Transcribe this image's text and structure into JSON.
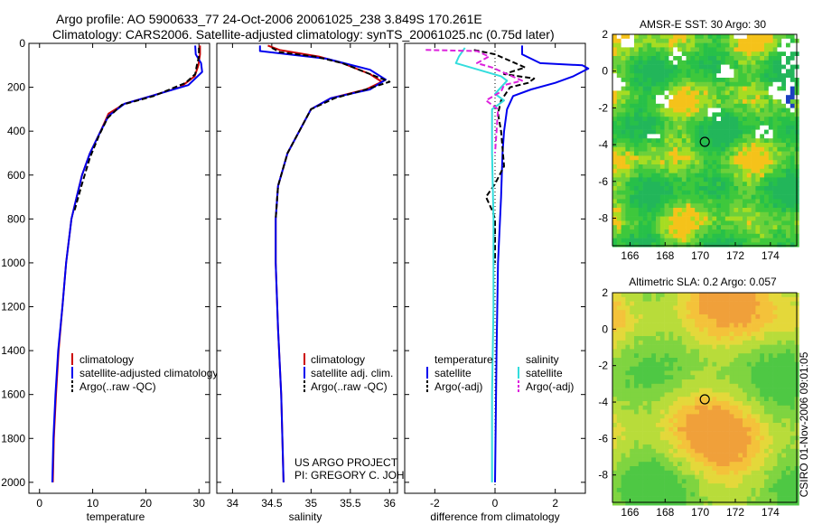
{
  "header": {
    "title_line1": "Argo profile: AO 5900633_77 24-Oct-2006 20061025_238 3.849S 170.261E",
    "title_line2": "Climatology: CARS2006. Satellite-adjusted climatology: synTS_20061025.nc (0.75d later)"
  },
  "credits": {
    "project": "US ARGO PROJECT",
    "pi": "PI: GREGORY C. JOHNSON",
    "stamp": "CSIRO 01-Nov-2006 09:01:05"
  },
  "colors": {
    "climatology": "#cc0000",
    "satellite": "#0000ee",
    "argo": "#000000",
    "satellite_salinity": "#33dddd",
    "argo_salinity": "#dd22dd"
  },
  "chart_data": [
    {
      "id": "temperature",
      "type": "line",
      "xlabel": "temperature",
      "ylabel": "",
      "xlim": [
        -2,
        32
      ],
      "ylim": [
        0,
        2050
      ],
      "y_inverted": true,
      "xticks": [
        0,
        10,
        20,
        30
      ],
      "yticks": [
        0,
        200,
        400,
        600,
        800,
        1000,
        1200,
        1400,
        1600,
        1800,
        2000
      ],
      "legend": {
        "position": "bottom-right",
        "entries": [
          "climatology",
          "satellite-adjusted climatology",
          "Argo(..raw -QC)"
        ]
      },
      "series": [
        {
          "name": "climatology",
          "color": "#cc0000",
          "dash": "",
          "points": [
            [
              30.2,
              10
            ],
            [
              30.2,
              50
            ],
            [
              29.9,
              100
            ],
            [
              29.2,
              150
            ],
            [
              26.5,
              200
            ],
            [
              21,
              240
            ],
            [
              16,
              275
            ],
            [
              13,
              320
            ],
            [
              11.5,
              400
            ],
            [
              9.5,
              500
            ],
            [
              8,
              600
            ],
            [
              7,
              700
            ],
            [
              6,
              800
            ],
            [
              5,
              1000
            ],
            [
              4.3,
              1200
            ],
            [
              3.6,
              1400
            ],
            [
              3.1,
              1600
            ],
            [
              2.7,
              1800
            ],
            [
              2.5,
              2000
            ]
          ]
        },
        {
          "name": "satellite-adjusted climatology",
          "color": "#0000ee",
          "dash": "",
          "points": [
            [
              29.3,
              10
            ],
            [
              29.4,
              50
            ],
            [
              30.4,
              90
            ],
            [
              30.6,
              130
            ],
            [
              28,
              190
            ],
            [
              21,
              240
            ],
            [
              16,
              275
            ],
            [
              13,
              330
            ],
            [
              11.5,
              400
            ],
            [
              9.5,
              500
            ],
            [
              8,
              600
            ],
            [
              7,
              700
            ],
            [
              6,
              800
            ],
            [
              5,
              1000
            ],
            [
              4.3,
              1200
            ],
            [
              3.5,
              1400
            ],
            [
              3,
              1600
            ],
            [
              2.6,
              1800
            ],
            [
              2.4,
              2000
            ]
          ]
        },
        {
          "name": "Argo(..raw -QC)",
          "color": "#000000",
          "dash": "6,3",
          "points": [
            [
              30,
              20
            ],
            [
              30,
              60
            ],
            [
              29.6,
              100
            ],
            [
              29.3,
              140
            ],
            [
              27.5,
              180
            ],
            [
              21.5,
              240
            ],
            [
              15.5,
              280
            ],
            [
              12.8,
              340
            ],
            [
              11.2,
              420
            ],
            [
              9.5,
              520
            ],
            [
              8,
              640
            ],
            [
              6.6,
              760
            ]
          ]
        }
      ]
    },
    {
      "id": "salinity",
      "type": "line",
      "xlabel": "salinity",
      "ylabel": "",
      "xlim": [
        33.8,
        36.1
      ],
      "ylim": [
        0,
        2050
      ],
      "y_inverted": true,
      "xticks": [
        34,
        34.5,
        35,
        35.5,
        36
      ],
      "legend": {
        "position": "bottom-right",
        "entries": [
          "climatology",
          "satellite adj. clim.",
          "Argo(..raw -QC)"
        ]
      },
      "series": [
        {
          "name": "climatology",
          "color": "#cc0000",
          "dash": "",
          "points": [
            [
              34.45,
              10
            ],
            [
              34.6,
              30
            ],
            [
              35.1,
              60
            ],
            [
              35.4,
              90
            ],
            [
              35.75,
              140
            ],
            [
              35.9,
              175
            ],
            [
              35.7,
              210
            ],
            [
              35.25,
              250
            ],
            [
              35.0,
              300
            ],
            [
              34.85,
              400
            ],
            [
              34.7,
              500
            ],
            [
              34.58,
              650
            ],
            [
              34.55,
              800
            ],
            [
              34.55,
              1000
            ],
            [
              34.58,
              1300
            ],
            [
              34.62,
              1600
            ],
            [
              34.65,
              2000
            ]
          ]
        },
        {
          "name": "satellite adj. clim.",
          "color": "#0000ee",
          "dash": "",
          "points": [
            [
              34.35,
              10
            ],
            [
              34.35,
              35
            ],
            [
              35.2,
              70
            ],
            [
              35.75,
              120
            ],
            [
              35.95,
              165
            ],
            [
              35.75,
              210
            ],
            [
              35.25,
              250
            ],
            [
              35.0,
              300
            ],
            [
              34.85,
              400
            ],
            [
              34.7,
              500
            ],
            [
              34.58,
              650
            ],
            [
              34.55,
              800
            ],
            [
              34.55,
              1000
            ],
            [
              34.58,
              1300
            ],
            [
              34.62,
              1600
            ],
            [
              34.65,
              2000
            ]
          ]
        },
        {
          "name": "Argo(..raw -QC)",
          "color": "#000000",
          "dash": "6,3",
          "points": [
            [
              34.5,
              20
            ],
            [
              34.6,
              40
            ],
            [
              35.05,
              60
            ],
            [
              35.4,
              90
            ],
            [
              35.75,
              140
            ],
            [
              36.0,
              175
            ],
            [
              35.7,
              210
            ],
            [
              35.3,
              250
            ],
            [
              35.0,
              300
            ],
            [
              34.85,
              400
            ],
            [
              34.7,
              500
            ],
            [
              34.58,
              650
            ],
            [
              34.55,
              800
            ]
          ]
        }
      ]
    },
    {
      "id": "difference",
      "type": "line",
      "xlabel": "difference from climatology",
      "ylabel": "",
      "xlim": [
        -3,
        3
      ],
      "ylim": [
        0,
        2050
      ],
      "y_inverted": true,
      "xticks": [
        -2,
        0,
        2
      ],
      "legend": {
        "position": "bottom-center",
        "columns": [
          {
            "heading": "temperature",
            "entries": [
              "satellite",
              "Argo(-adj)"
            ]
          },
          {
            "heading": "salinity",
            "entries": [
              "satellite",
              "Argo(-adj)"
            ]
          }
        ]
      },
      "series": [
        {
          "name": "temperature satellite",
          "color": "#0000ee",
          "dash": "",
          "points": [
            [
              0.9,
              10
            ],
            [
              0.9,
              50
            ],
            [
              1.5,
              90
            ],
            [
              2.9,
              100
            ],
            [
              3.1,
              115
            ],
            [
              2.6,
              150
            ],
            [
              2.0,
              180
            ],
            [
              1.2,
              210
            ],
            [
              0.6,
              240
            ],
            [
              0.4,
              300
            ],
            [
              0.3,
              400
            ],
            [
              0.25,
              500
            ],
            [
              0.2,
              700
            ],
            [
              0.1,
              1000
            ],
            [
              0.05,
              1400
            ],
            [
              0.0,
              2000
            ]
          ]
        },
        {
          "name": "temperature Argo(-adj)",
          "color": "#000000",
          "dash": "6,3",
          "points": [
            [
              -0.7,
              30
            ],
            [
              0.0,
              50
            ],
            [
              0.5,
              80
            ],
            [
              1.0,
              110
            ],
            [
              0.3,
              140
            ],
            [
              1.3,
              160
            ],
            [
              1.1,
              180
            ],
            [
              0.5,
              200
            ],
            [
              0.2,
              260
            ],
            [
              0.1,
              320
            ],
            [
              0.2,
              400
            ],
            [
              0.3,
              560
            ],
            [
              0.0,
              640
            ],
            [
              -0.3,
              700
            ],
            [
              -0.1,
              760
            ],
            [
              0.0,
              800
            ],
            [
              0.0,
              1000
            ]
          ]
        },
        {
          "name": "salinity satellite",
          "color": "#33dddd",
          "dash": "",
          "points": [
            [
              -1.0,
              20
            ],
            [
              -1.2,
              60
            ],
            [
              -1.3,
              90
            ],
            [
              0.2,
              150
            ],
            [
              0.4,
              170
            ],
            [
              0.0,
              230
            ],
            [
              0.3,
              260
            ],
            [
              -0.1,
              300
            ],
            [
              -0.1,
              500
            ],
            [
              -0.05,
              800
            ],
            [
              -0.05,
              1200
            ],
            [
              -0.1,
              1600
            ],
            [
              -0.1,
              2000
            ]
          ]
        },
        {
          "name": "salinity Argo(-adj)",
          "color": "#dd22dd",
          "dash": "6,3",
          "points": [
            [
              -2.3,
              30
            ],
            [
              -0.6,
              35
            ],
            [
              -0.2,
              60
            ],
            [
              -0.6,
              90
            ],
            [
              -0.1,
              110
            ],
            [
              0.9,
              170
            ],
            [
              0.3,
              190
            ],
            [
              0.2,
              220
            ],
            [
              -0.3,
              260
            ],
            [
              0.1,
              300
            ],
            [
              0.05,
              400
            ],
            [
              0.0,
              500
            ]
          ]
        }
      ]
    },
    {
      "id": "sst_map",
      "type": "heatmap",
      "title": "AMSR-E SST: 30 Argo: 30",
      "xlim": [
        165,
        175.5
      ],
      "ylim": [
        -9.5,
        2
      ],
      "xticks": [
        166,
        168,
        170,
        172,
        174
      ],
      "yticks": [
        2,
        0,
        -2,
        -4,
        -6,
        -8
      ],
      "float_position": {
        "lon": 170.261,
        "lat": -3.849
      }
    },
    {
      "id": "sla_map",
      "type": "heatmap",
      "title": "Altimetric SLA: 0.2 Argo: 0.057",
      "xlim": [
        165,
        175.5
      ],
      "ylim": [
        -9.5,
        2
      ],
      "xticks": [
        166,
        168,
        170,
        172,
        174
      ],
      "yticks": [
        2,
        0,
        -2,
        -4,
        -6,
        -8
      ],
      "float_position": {
        "lon": 170.261,
        "lat": -3.849
      }
    }
  ]
}
